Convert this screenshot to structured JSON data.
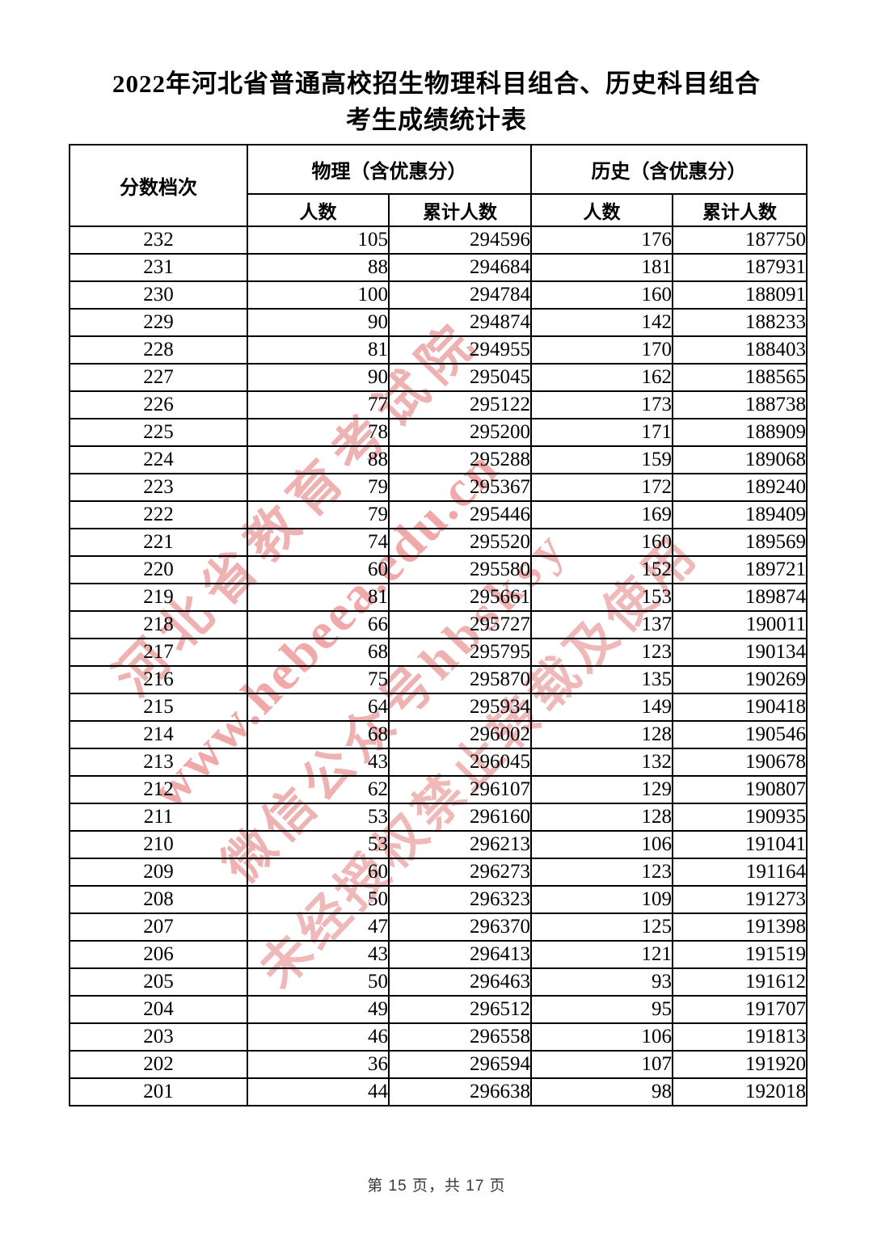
{
  "title": {
    "line1": "2022年河北省普通高校招生物理科目组合、历史科目组合",
    "line2": "考生成绩统计表"
  },
  "table": {
    "header": {
      "score_col": "分数档次",
      "physics_group": "物理（含优惠分）",
      "history_group": "历史（含优惠分）",
      "count": "人数",
      "cumulative": "累计人数"
    },
    "rows": [
      [
        232,
        105,
        294596,
        176,
        187750
      ],
      [
        231,
        88,
        294684,
        181,
        187931
      ],
      [
        230,
        100,
        294784,
        160,
        188091
      ],
      [
        229,
        90,
        294874,
        142,
        188233
      ],
      [
        228,
        81,
        294955,
        170,
        188403
      ],
      [
        227,
        90,
        295045,
        162,
        188565
      ],
      [
        226,
        77,
        295122,
        173,
        188738
      ],
      [
        225,
        78,
        295200,
        171,
        188909
      ],
      [
        224,
        88,
        295288,
        159,
        189068
      ],
      [
        223,
        79,
        295367,
        172,
        189240
      ],
      [
        222,
        79,
        295446,
        169,
        189409
      ],
      [
        221,
        74,
        295520,
        160,
        189569
      ],
      [
        220,
        60,
        295580,
        152,
        189721
      ],
      [
        219,
        81,
        295661,
        153,
        189874
      ],
      [
        218,
        66,
        295727,
        137,
        190011
      ],
      [
        217,
        68,
        295795,
        123,
        190134
      ],
      [
        216,
        75,
        295870,
        135,
        190269
      ],
      [
        215,
        64,
        295934,
        149,
        190418
      ],
      [
        214,
        68,
        296002,
        128,
        190546
      ],
      [
        213,
        43,
        296045,
        132,
        190678
      ],
      [
        212,
        62,
        296107,
        129,
        190807
      ],
      [
        211,
        53,
        296160,
        128,
        190935
      ],
      [
        210,
        53,
        296213,
        106,
        191041
      ],
      [
        209,
        60,
        296273,
        123,
        191164
      ],
      [
        208,
        50,
        296323,
        109,
        191273
      ],
      [
        207,
        47,
        296370,
        125,
        191398
      ],
      [
        206,
        43,
        296413,
        121,
        191519
      ],
      [
        205,
        50,
        296463,
        93,
        191612
      ],
      [
        204,
        49,
        296512,
        95,
        191707
      ],
      [
        203,
        46,
        296558,
        106,
        191813
      ],
      [
        202,
        36,
        296594,
        107,
        191920
      ],
      [
        201,
        44,
        296638,
        98,
        192018
      ]
    ]
  },
  "watermark": {
    "line1": "河北省教育考试院",
    "line2": "www.hebeea.edu.cn",
    "line3": "微信公众号hbsksy",
    "line4": "未经授权禁止转载及使用",
    "color": "#df6666"
  },
  "footer": {
    "page_info": "第 15 页，共 17 页"
  }
}
